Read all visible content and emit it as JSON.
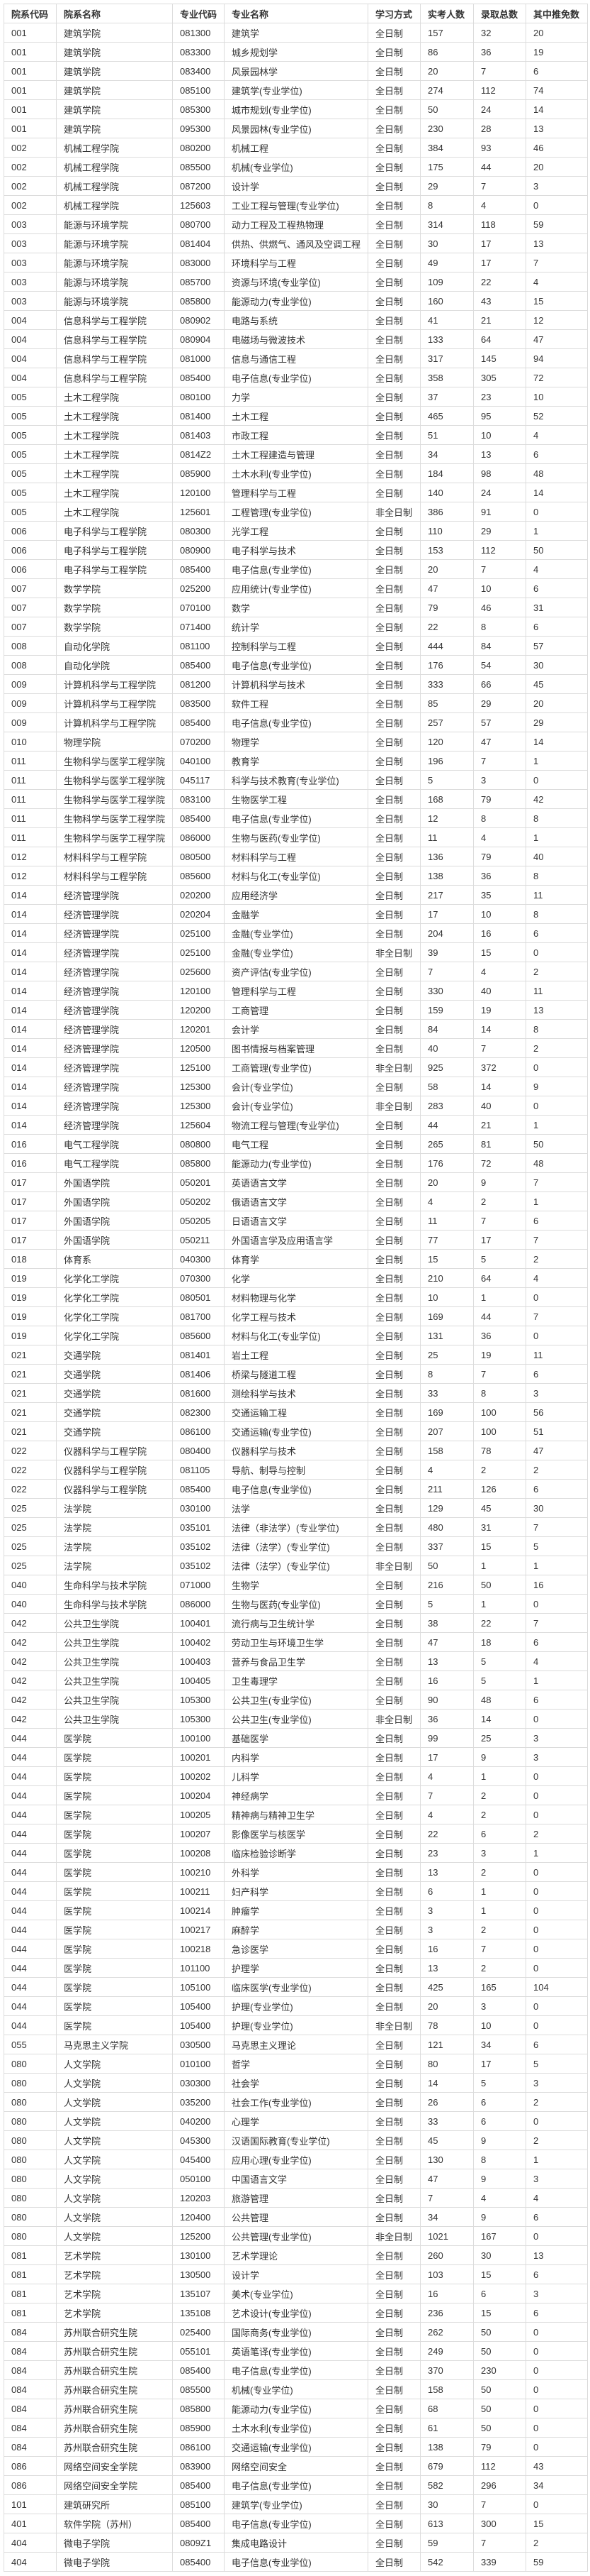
{
  "table": {
    "headers": [
      "院系代码",
      "院系名称",
      "专业代码",
      "专业名称",
      "学习方式",
      "实考人数",
      "录取总数",
      "其中推免数"
    ],
    "rows": [
      [
        "001",
        "建筑学院",
        "081300",
        "建筑学",
        "全日制",
        "157",
        "32",
        "20"
      ],
      [
        "001",
        "建筑学院",
        "083300",
        "城乡规划学",
        "全日制",
        "86",
        "36",
        "19"
      ],
      [
        "001",
        "建筑学院",
        "083400",
        "风景园林学",
        "全日制",
        "20",
        "7",
        "6"
      ],
      [
        "001",
        "建筑学院",
        "085100",
        "建筑学(专业学位)",
        "全日制",
        "274",
        "112",
        "74"
      ],
      [
        "001",
        "建筑学院",
        "085300",
        "城市规划(专业学位)",
        "全日制",
        "50",
        "24",
        "14"
      ],
      [
        "001",
        "建筑学院",
        "095300",
        "风景园林(专业学位)",
        "全日制",
        "230",
        "28",
        "13"
      ],
      [
        "002",
        "机械工程学院",
        "080200",
        "机械工程",
        "全日制",
        "384",
        "93",
        "46"
      ],
      [
        "002",
        "机械工程学院",
        "085500",
        "机械(专业学位)",
        "全日制",
        "175",
        "44",
        "20"
      ],
      [
        "002",
        "机械工程学院",
        "087200",
        "设计学",
        "全日制",
        "29",
        "7",
        "3"
      ],
      [
        "002",
        "机械工程学院",
        "125603",
        "工业工程与管理(专业学位)",
        "全日制",
        "8",
        "4",
        "0"
      ],
      [
        "003",
        "能源与环境学院",
        "080700",
        "动力工程及工程热物理",
        "全日制",
        "314",
        "118",
        "59"
      ],
      [
        "003",
        "能源与环境学院",
        "081404",
        "供热、供燃气、通风及空调工程",
        "全日制",
        "30",
        "17",
        "13"
      ],
      [
        "003",
        "能源与环境学院",
        "083000",
        "环境科学与工程",
        "全日制",
        "49",
        "17",
        "7"
      ],
      [
        "003",
        "能源与环境学院",
        "085700",
        "资源与环境(专业学位)",
        "全日制",
        "109",
        "22",
        "4"
      ],
      [
        "003",
        "能源与环境学院",
        "085800",
        "能源动力(专业学位)",
        "全日制",
        "160",
        "43",
        "15"
      ],
      [
        "004",
        "信息科学与工程学院",
        "080902",
        "电路与系统",
        "全日制",
        "41",
        "21",
        "12"
      ],
      [
        "004",
        "信息科学与工程学院",
        "080904",
        "电磁场与微波技术",
        "全日制",
        "133",
        "64",
        "47"
      ],
      [
        "004",
        "信息科学与工程学院",
        "081000",
        "信息与通信工程",
        "全日制",
        "317",
        "145",
        "94"
      ],
      [
        "004",
        "信息科学与工程学院",
        "085400",
        "电子信息(专业学位)",
        "全日制",
        "358",
        "305",
        "72"
      ],
      [
        "005",
        "土木工程学院",
        "080100",
        "力学",
        "全日制",
        "37",
        "23",
        "10"
      ],
      [
        "005",
        "土木工程学院",
        "081400",
        "土木工程",
        "全日制",
        "465",
        "95",
        "52"
      ],
      [
        "005",
        "土木工程学院",
        "081403",
        "市政工程",
        "全日制",
        "51",
        "10",
        "4"
      ],
      [
        "005",
        "土木工程学院",
        "0814Z2",
        "土木工程建造与管理",
        "全日制",
        "34",
        "13",
        "6"
      ],
      [
        "005",
        "土木工程学院",
        "085900",
        "土木水利(专业学位)",
        "全日制",
        "184",
        "98",
        "48"
      ],
      [
        "005",
        "土木工程学院",
        "120100",
        "管理科学与工程",
        "全日制",
        "140",
        "24",
        "14"
      ],
      [
        "005",
        "土木工程学院",
        "125601",
        "工程管理(专业学位)",
        "非全日制",
        "386",
        "91",
        "0"
      ],
      [
        "006",
        "电子科学与工程学院",
        "080300",
        "光学工程",
        "全日制",
        "110",
        "29",
        "1"
      ],
      [
        "006",
        "电子科学与工程学院",
        "080900",
        "电子科学与技术",
        "全日制",
        "153",
        "112",
        "50"
      ],
      [
        "006",
        "电子科学与工程学院",
        "085400",
        "电子信息(专业学位)",
        "全日制",
        "20",
        "7",
        "4"
      ],
      [
        "007",
        "数学学院",
        "025200",
        "应用统计(专业学位)",
        "全日制",
        "47",
        "10",
        "6"
      ],
      [
        "007",
        "数学学院",
        "070100",
        "数学",
        "全日制",
        "79",
        "46",
        "31"
      ],
      [
        "007",
        "数学学院",
        "071400",
        "统计学",
        "全日制",
        "22",
        "8",
        "6"
      ],
      [
        "008",
        "自动化学院",
        "081100",
        "控制科学与工程",
        "全日制",
        "444",
        "84",
        "57"
      ],
      [
        "008",
        "自动化学院",
        "085400",
        "电子信息(专业学位)",
        "全日制",
        "176",
        "54",
        "30"
      ],
      [
        "009",
        "计算机科学与工程学院",
        "081200",
        "计算机科学与技术",
        "全日制",
        "333",
        "66",
        "45"
      ],
      [
        "009",
        "计算机科学与工程学院",
        "083500",
        "软件工程",
        "全日制",
        "85",
        "29",
        "20"
      ],
      [
        "009",
        "计算机科学与工程学院",
        "085400",
        "电子信息(专业学位)",
        "全日制",
        "257",
        "57",
        "29"
      ],
      [
        "010",
        "物理学院",
        "070200",
        "物理学",
        "全日制",
        "120",
        "47",
        "14"
      ],
      [
        "011",
        "生物科学与医学工程学院",
        "040100",
        "教育学",
        "全日制",
        "196",
        "7",
        "1"
      ],
      [
        "011",
        "生物科学与医学工程学院",
        "045117",
        "科学与技术教育(专业学位)",
        "全日制",
        "5",
        "3",
        "0"
      ],
      [
        "011",
        "生物科学与医学工程学院",
        "083100",
        "生物医学工程",
        "全日制",
        "168",
        "79",
        "42"
      ],
      [
        "011",
        "生物科学与医学工程学院",
        "085400",
        "电子信息(专业学位)",
        "全日制",
        "12",
        "8",
        "8"
      ],
      [
        "011",
        "生物科学与医学工程学院",
        "086000",
        "生物与医药(专业学位)",
        "全日制",
        "11",
        "4",
        "1"
      ],
      [
        "012",
        "材料科学与工程学院",
        "080500",
        "材料科学与工程",
        "全日制",
        "136",
        "79",
        "40"
      ],
      [
        "012",
        "材料科学与工程学院",
        "085600",
        "材料与化工(专业学位)",
        "全日制",
        "138",
        "36",
        "8"
      ],
      [
        "014",
        "经济管理学院",
        "020200",
        "应用经济学",
        "全日制",
        "217",
        "35",
        "11"
      ],
      [
        "014",
        "经济管理学院",
        "020204",
        "金融学",
        "全日制",
        "17",
        "10",
        "8"
      ],
      [
        "014",
        "经济管理学院",
        "025100",
        "金融(专业学位)",
        "全日制",
        "204",
        "16",
        "6"
      ],
      [
        "014",
        "经济管理学院",
        "025100",
        "金融(专业学位)",
        "非全日制",
        "39",
        "15",
        "0"
      ],
      [
        "014",
        "经济管理学院",
        "025600",
        "资产评估(专业学位)",
        "全日制",
        "7",
        "4",
        "2"
      ],
      [
        "014",
        "经济管理学院",
        "120100",
        "管理科学与工程",
        "全日制",
        "330",
        "40",
        "11"
      ],
      [
        "014",
        "经济管理学院",
        "120200",
        "工商管理",
        "全日制",
        "159",
        "19",
        "13"
      ],
      [
        "014",
        "经济管理学院",
        "120201",
        "会计学",
        "全日制",
        "84",
        "14",
        "8"
      ],
      [
        "014",
        "经济管理学院",
        "120500",
        "图书情报与档案管理",
        "全日制",
        "40",
        "7",
        "2"
      ],
      [
        "014",
        "经济管理学院",
        "125100",
        "工商管理(专业学位)",
        "非全日制",
        "925",
        "372",
        "0"
      ],
      [
        "014",
        "经济管理学院",
        "125300",
        "会计(专业学位)",
        "全日制",
        "58",
        "14",
        "9"
      ],
      [
        "014",
        "经济管理学院",
        "125300",
        "会计(专业学位)",
        "非全日制",
        "283",
        "40",
        "0"
      ],
      [
        "014",
        "经济管理学院",
        "125604",
        "物流工程与管理(专业学位)",
        "全日制",
        "44",
        "21",
        "1"
      ],
      [
        "016",
        "电气工程学院",
        "080800",
        "电气工程",
        "全日制",
        "265",
        "81",
        "50"
      ],
      [
        "016",
        "电气工程学院",
        "085800",
        "能源动力(专业学位)",
        "全日制",
        "176",
        "72",
        "48"
      ],
      [
        "017",
        "外国语学院",
        "050201",
        "英语语言文学",
        "全日制",
        "20",
        "9",
        "7"
      ],
      [
        "017",
        "外国语学院",
        "050202",
        "俄语语言文学",
        "全日制",
        "4",
        "2",
        "1"
      ],
      [
        "017",
        "外国语学院",
        "050205",
        "日语语言文学",
        "全日制",
        "11",
        "7",
        "6"
      ],
      [
        "017",
        "外国语学院",
        "050211",
        "外国语言学及应用语言学",
        "全日制",
        "77",
        "17",
        "7"
      ],
      [
        "018",
        "体育系",
        "040300",
        "体育学",
        "全日制",
        "15",
        "5",
        "2"
      ],
      [
        "019",
        "化学化工学院",
        "070300",
        "化学",
        "全日制",
        "210",
        "64",
        "4"
      ],
      [
        "019",
        "化学化工学院",
        "080501",
        "材料物理与化学",
        "全日制",
        "10",
        "1",
        "0"
      ],
      [
        "019",
        "化学化工学院",
        "081700",
        "化学工程与技术",
        "全日制",
        "169",
        "44",
        "7"
      ],
      [
        "019",
        "化学化工学院",
        "085600",
        "材料与化工(专业学位)",
        "全日制",
        "131",
        "36",
        "0"
      ],
      [
        "021",
        "交通学院",
        "081401",
        "岩土工程",
        "全日制",
        "25",
        "19",
        "11"
      ],
      [
        "021",
        "交通学院",
        "081406",
        "桥梁与隧道工程",
        "全日制",
        "8",
        "7",
        "6"
      ],
      [
        "021",
        "交通学院",
        "081600",
        "测绘科学与技术",
        "全日制",
        "33",
        "8",
        "3"
      ],
      [
        "021",
        "交通学院",
        "082300",
        "交通运输工程",
        "全日制",
        "169",
        "100",
        "56"
      ],
      [
        "021",
        "交通学院",
        "086100",
        "交通运输(专业学位)",
        "全日制",
        "207",
        "100",
        "51"
      ],
      [
        "022",
        "仪器科学与工程学院",
        "080400",
        "仪器科学与技术",
        "全日制",
        "158",
        "78",
        "47"
      ],
      [
        "022",
        "仪器科学与工程学院",
        "081105",
        "导航、制导与控制",
        "全日制",
        "4",
        "2",
        "2"
      ],
      [
        "022",
        "仪器科学与工程学院",
        "085400",
        "电子信息(专业学位)",
        "全日制",
        "211",
        "126",
        "6"
      ],
      [
        "025",
        "法学院",
        "030100",
        "法学",
        "全日制",
        "129",
        "45",
        "30"
      ],
      [
        "025",
        "法学院",
        "035101",
        "法律（非法学）(专业学位)",
        "全日制",
        "480",
        "31",
        "7"
      ],
      [
        "025",
        "法学院",
        "035102",
        "法律（法学）(专业学位)",
        "全日制",
        "337",
        "15",
        "5"
      ],
      [
        "025",
        "法学院",
        "035102",
        "法律（法学）(专业学位)",
        "非全日制",
        "50",
        "1",
        "1"
      ],
      [
        "040",
        "生命科学与技术学院",
        "071000",
        "生物学",
        "全日制",
        "216",
        "50",
        "16"
      ],
      [
        "040",
        "生命科学与技术学院",
        "086000",
        "生物与医药(专业学位)",
        "全日制",
        "5",
        "1",
        "0"
      ],
      [
        "042",
        "公共卫生学院",
        "100401",
        "流行病与卫生统计学",
        "全日制",
        "38",
        "22",
        "7"
      ],
      [
        "042",
        "公共卫生学院",
        "100402",
        "劳动卫生与环境卫生学",
        "全日制",
        "47",
        "18",
        "6"
      ],
      [
        "042",
        "公共卫生学院",
        "100403",
        "营养与食品卫生学",
        "全日制",
        "13",
        "5",
        "4"
      ],
      [
        "042",
        "公共卫生学院",
        "100405",
        "卫生毒理学",
        "全日制",
        "16",
        "5",
        "1"
      ],
      [
        "042",
        "公共卫生学院",
        "105300",
        "公共卫生(专业学位)",
        "全日制",
        "90",
        "48",
        "6"
      ],
      [
        "042",
        "公共卫生学院",
        "105300",
        "公共卫生(专业学位)",
        "非全日制",
        "36",
        "14",
        "0"
      ],
      [
        "044",
        "医学院",
        "100100",
        "基础医学",
        "全日制",
        "99",
        "25",
        "3"
      ],
      [
        "044",
        "医学院",
        "100201",
        "内科学",
        "全日制",
        "17",
        "9",
        "3"
      ],
      [
        "044",
        "医学院",
        "100202",
        "儿科学",
        "全日制",
        "4",
        "1",
        "0"
      ],
      [
        "044",
        "医学院",
        "100204",
        "神经病学",
        "全日制",
        "7",
        "2",
        "0"
      ],
      [
        "044",
        "医学院",
        "100205",
        "精神病与精神卫生学",
        "全日制",
        "4",
        "2",
        "0"
      ],
      [
        "044",
        "医学院",
        "100207",
        "影像医学与核医学",
        "全日制",
        "22",
        "6",
        "2"
      ],
      [
        "044",
        "医学院",
        "100208",
        "临床检验诊断学",
        "全日制",
        "23",
        "3",
        "1"
      ],
      [
        "044",
        "医学院",
        "100210",
        "外科学",
        "全日制",
        "13",
        "2",
        "0"
      ],
      [
        "044",
        "医学院",
        "100211",
        "妇产科学",
        "全日制",
        "6",
        "1",
        "0"
      ],
      [
        "044",
        "医学院",
        "100214",
        "肿瘤学",
        "全日制",
        "3",
        "1",
        "0"
      ],
      [
        "044",
        "医学院",
        "100217",
        "麻醉学",
        "全日制",
        "3",
        "2",
        "0"
      ],
      [
        "044",
        "医学院",
        "100218",
        "急诊医学",
        "全日制",
        "16",
        "7",
        "0"
      ],
      [
        "044",
        "医学院",
        "101100",
        "护理学",
        "全日制",
        "13",
        "2",
        "0"
      ],
      [
        "044",
        "医学院",
        "105100",
        "临床医学(专业学位)",
        "全日制",
        "425",
        "165",
        "104"
      ],
      [
        "044",
        "医学院",
        "105400",
        "护理(专业学位)",
        "全日制",
        "20",
        "3",
        "0"
      ],
      [
        "044",
        "医学院",
        "105400",
        "护理(专业学位)",
        "非全日制",
        "78",
        "10",
        "0"
      ],
      [
        "055",
        "马克思主义学院",
        "030500",
        "马克思主义理论",
        "全日制",
        "121",
        "34",
        "6"
      ],
      [
        "080",
        "人文学院",
        "010100",
        "哲学",
        "全日制",
        "80",
        "17",
        "5"
      ],
      [
        "080",
        "人文学院",
        "030300",
        "社会学",
        "全日制",
        "14",
        "5",
        "3"
      ],
      [
        "080",
        "人文学院",
        "035200",
        "社会工作(专业学位)",
        "全日制",
        "26",
        "6",
        "2"
      ],
      [
        "080",
        "人文学院",
        "040200",
        "心理学",
        "全日制",
        "33",
        "6",
        "0"
      ],
      [
        "080",
        "人文学院",
        "045300",
        "汉语国际教育(专业学位)",
        "全日制",
        "45",
        "9",
        "2"
      ],
      [
        "080",
        "人文学院",
        "045400",
        "应用心理(专业学位)",
        "全日制",
        "130",
        "8",
        "1"
      ],
      [
        "080",
        "人文学院",
        "050100",
        "中国语言文学",
        "全日制",
        "47",
        "9",
        "3"
      ],
      [
        "080",
        "人文学院",
        "120203",
        "旅游管理",
        "全日制",
        "7",
        "4",
        "4"
      ],
      [
        "080",
        "人文学院",
        "120400",
        "公共管理",
        "全日制",
        "34",
        "9",
        "6"
      ],
      [
        "080",
        "人文学院",
        "125200",
        "公共管理(专业学位)",
        "非全日制",
        "1021",
        "167",
        "0"
      ],
      [
        "081",
        "艺术学院",
        "130100",
        "艺术学理论",
        "全日制",
        "260",
        "30",
        "13"
      ],
      [
        "081",
        "艺术学院",
        "130500",
        "设计学",
        "全日制",
        "103",
        "15",
        "6"
      ],
      [
        "081",
        "艺术学院",
        "135107",
        "美术(专业学位)",
        "全日制",
        "16",
        "6",
        "3"
      ],
      [
        "081",
        "艺术学院",
        "135108",
        "艺术设计(专业学位)",
        "全日制",
        "236",
        "15",
        "6"
      ],
      [
        "084",
        "苏州联合研究生院",
        "025400",
        "国际商务(专业学位)",
        "全日制",
        "262",
        "50",
        "0"
      ],
      [
        "084",
        "苏州联合研究生院",
        "055101",
        "英语笔译(专业学位)",
        "全日制",
        "249",
        "50",
        "0"
      ],
      [
        "084",
        "苏州联合研究生院",
        "085400",
        "电子信息(专业学位)",
        "全日制",
        "370",
        "230",
        "0"
      ],
      [
        "084",
        "苏州联合研究生院",
        "085500",
        "机械(专业学位)",
        "全日制",
        "158",
        "50",
        "0"
      ],
      [
        "084",
        "苏州联合研究生院",
        "085800",
        "能源动力(专业学位)",
        "全日制",
        "68",
        "50",
        "0"
      ],
      [
        "084",
        "苏州联合研究生院",
        "085900",
        "土木水利(专业学位)",
        "全日制",
        "61",
        "50",
        "0"
      ],
      [
        "084",
        "苏州联合研究生院",
        "086100",
        "交通运输(专业学位)",
        "全日制",
        "138",
        "79",
        "0"
      ],
      [
        "086",
        "网络空间安全学院",
        "083900",
        "网络空间安全",
        "全日制",
        "679",
        "112",
        "43"
      ],
      [
        "086",
        "网络空间安全学院",
        "085400",
        "电子信息(专业学位)",
        "全日制",
        "582",
        "296",
        "34"
      ],
      [
        "101",
        "建筑研究所",
        "085100",
        "建筑学(专业学位)",
        "全日制",
        "30",
        "7",
        "0"
      ],
      [
        "401",
        "软件学院（苏州）",
        "085400",
        "电子信息(专业学位)",
        "全日制",
        "613",
        "300",
        "15"
      ],
      [
        "404",
        "微电子学院",
        "0809Z1",
        "集成电路设计",
        "全日制",
        "59",
        "7",
        "2"
      ],
      [
        "404",
        "微电子学院",
        "085400",
        "电子信息(专业学位)",
        "全日制",
        "542",
        "339",
        "59"
      ]
    ]
  }
}
